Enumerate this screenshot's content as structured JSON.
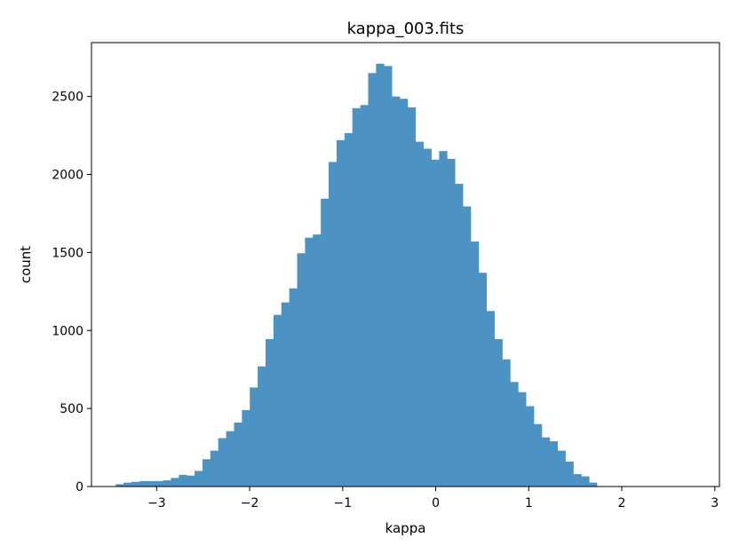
{
  "chart_data": {
    "type": "bar",
    "title": "kappa_003.fits",
    "xlabel": "kappa",
    "ylabel": "count",
    "xlim": [
      -3.7,
      3.05
    ],
    "ylim": [
      0,
      2845
    ],
    "grid": false,
    "bar_color": "#4c92c3",
    "x_ticks": [
      -3,
      -2,
      -1,
      0,
      1,
      2,
      3
    ],
    "x_tick_labels": [
      "−3",
      "−2",
      "−1",
      "0",
      "1",
      "2",
      "3"
    ],
    "y_ticks": [
      0,
      500,
      1000,
      1500,
      2000,
      2500
    ],
    "y_tick_labels": [
      "0",
      "500",
      "1000",
      "1500",
      "2000",
      "2500"
    ],
    "bin_start": -3.44,
    "bin_width": 0.0848,
    "values": [
      15,
      25,
      30,
      35,
      35,
      35,
      40,
      55,
      75,
      70,
      100,
      175,
      230,
      310,
      355,
      410,
      490,
      635,
      770,
      945,
      1100,
      1180,
      1270,
      1495,
      1595,
      1615,
      1845,
      2080,
      2220,
      2265,
      2425,
      2445,
      2650,
      2710,
      2695,
      2500,
      2485,
      2430,
      2210,
      2165,
      2095,
      2150,
      2100,
      1940,
      1795,
      1570,
      1370,
      1125,
      945,
      815,
      670,
      605,
      515,
      400,
      315,
      290,
      230,
      160,
      80,
      65,
      25
    ]
  }
}
